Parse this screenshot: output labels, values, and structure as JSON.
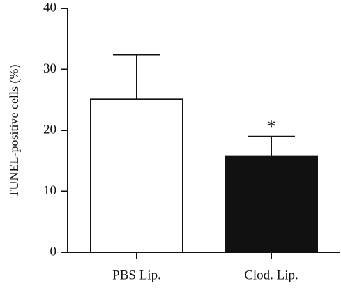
{
  "chart_data": {
    "type": "bar",
    "title": "",
    "xlabel": "",
    "ylabel": "TUNEL-positive cells (%)",
    "ylim": [
      0,
      40
    ],
    "yticks": [
      0,
      10,
      20,
      30,
      40
    ],
    "categories": [
      "PBS Lip.",
      "Clod. Lip."
    ],
    "values": [
      25.1,
      15.7
    ],
    "error_upper": [
      32.4,
      19.0
    ],
    "bar_colors": [
      "#ffffff",
      "#111111"
    ],
    "annotations": [
      {
        "category": "Clod. Lip.",
        "text": "*"
      }
    ],
    "grid": false
  }
}
